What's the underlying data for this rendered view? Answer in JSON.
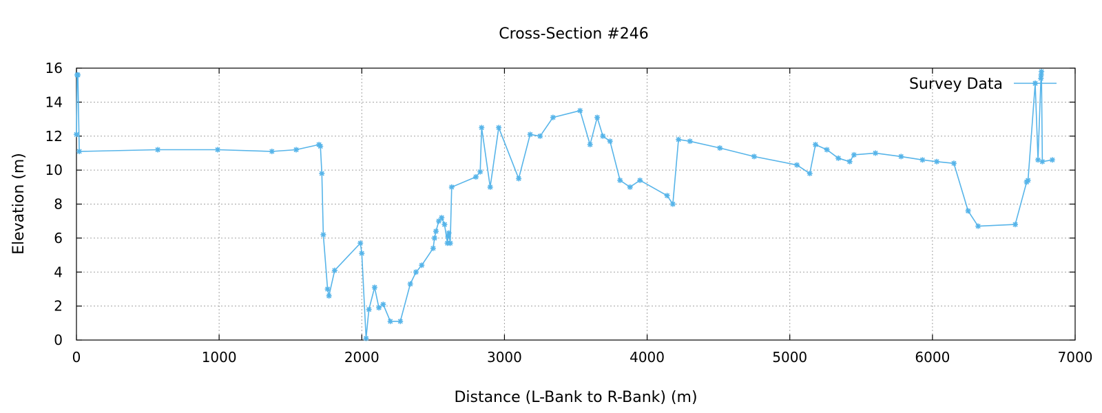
{
  "chart_data": {
    "type": "line",
    "title": "Cross-Section #246",
    "xlabel": "Distance (L-Bank to R-Bank) (m)",
    "ylabel": "Elevation (m)",
    "xlim": [
      0,
      7000
    ],
    "ylim": [
      0,
      16
    ],
    "xticks": [
      0,
      1000,
      2000,
      3000,
      4000,
      5000,
      6000,
      7000
    ],
    "yticks": [
      0,
      2,
      4,
      6,
      8,
      10,
      12,
      14,
      16
    ],
    "grid": true,
    "legend_position": "top-right",
    "series": [
      {
        "name": "Survey Data",
        "color": "#56B4E9",
        "marker": "asterisk",
        "x": [
          0,
          5,
          10,
          20,
          570,
          990,
          1370,
          1540,
          1700,
          1710,
          1720,
          1730,
          1760,
          1770,
          1810,
          1990,
          2000,
          2030,
          2050,
          2090,
          2120,
          2150,
          2200,
          2270,
          2340,
          2380,
          2420,
          2500,
          2510,
          2520,
          2540,
          2560,
          2580,
          2600,
          2605,
          2610,
          2620,
          2630,
          2800,
          2830,
          2840,
          2900,
          2960,
          3100,
          3180,
          3250,
          3340,
          3530,
          3600,
          3650,
          3690,
          3740,
          3810,
          3880,
          3950,
          4140,
          4180,
          4220,
          4300,
          4510,
          4750,
          5050,
          5140,
          5180,
          5260,
          5340,
          5420,
          5450,
          5600,
          5780,
          5930,
          6030,
          6150,
          6250,
          6320,
          6580,
          6660,
          6670,
          6720,
          6740,
          6760,
          6762,
          6764,
          6770,
          6840
        ],
        "y": [
          12.1,
          15.6,
          15.6,
          11.1,
          11.2,
          11.2,
          11.1,
          11.2,
          11.5,
          11.4,
          9.8,
          6.2,
          3.0,
          2.6,
          4.1,
          5.7,
          5.1,
          0.1,
          1.8,
          3.1,
          1.9,
          2.1,
          1.1,
          1.1,
          3.3,
          4.0,
          4.4,
          5.4,
          6.0,
          6.4,
          7.0,
          7.2,
          6.8,
          5.7,
          6.1,
          6.3,
          5.7,
          9.0,
          9.6,
          9.9,
          12.5,
          9.0,
          12.5,
          9.5,
          12.1,
          12.0,
          13.1,
          13.5,
          11.5,
          13.1,
          12.0,
          11.7,
          9.4,
          9.0,
          9.4,
          8.5,
          8.0,
          11.8,
          11.7,
          11.3,
          10.8,
          10.3,
          9.8,
          11.5,
          11.2,
          10.7,
          10.5,
          10.9,
          11.0,
          10.8,
          10.6,
          10.5,
          10.4,
          7.6,
          6.7,
          6.8,
          9.3,
          9.4,
          15.1,
          10.6,
          15.4,
          15.6,
          15.8,
          10.5,
          10.6
        ]
      }
    ]
  }
}
